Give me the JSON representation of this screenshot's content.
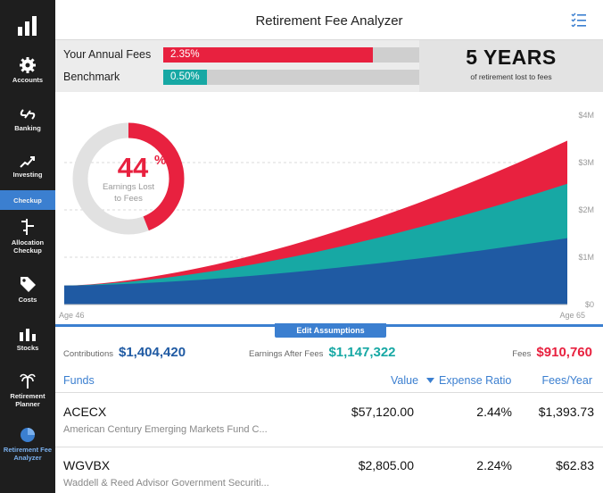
{
  "sidebar": {
    "items": [
      {
        "label": "",
        "icon": "bar-chart-icon"
      },
      {
        "label": "Accounts",
        "icon": "gear-icon"
      },
      {
        "label": "Banking",
        "icon": "link-icon"
      },
      {
        "label": "Investing",
        "icon": "trend-chart-icon"
      },
      {
        "label": "Checkup",
        "icon": ""
      },
      {
        "label": "Allocation Checkup",
        "icon": "allocation-icon"
      },
      {
        "label": "Costs",
        "icon": "tag-icon"
      },
      {
        "label": "Stocks",
        "icon": "stocks-icon"
      },
      {
        "label": "Retirement Planner",
        "icon": "palm-tree-icon"
      },
      {
        "label": "Retirement Fee Analyzer",
        "icon": "pie-icon"
      }
    ],
    "active": "Checkup"
  },
  "header": {
    "title": "Retirement Fee Analyzer",
    "menu_icon": "checklist-icon"
  },
  "fees": {
    "annual_label": "Your Annual Fees",
    "annual_value": "2.35%",
    "annual_fraction": 0.82,
    "benchmark_label": "Benchmark",
    "benchmark_value": "0.50%",
    "benchmark_fraction": 0.17,
    "years_big": "5 YEARS",
    "years_small": "of retirement lost to fees"
  },
  "colors": {
    "red": "#e8213f",
    "teal": "#17a8a4",
    "blue": "#1f5aa3",
    "accent": "#3b7fd0"
  },
  "donut": {
    "percent": "44",
    "percent_sign": "%",
    "label_line1": "Earnings Lost",
    "label_line2": "to Fees",
    "fraction": 0.44
  },
  "chart_data": {
    "type": "area",
    "x_start_label": "Age 46",
    "x_end_label": "Age 65",
    "y_ticks": [
      "$0",
      "$1M",
      "$2M",
      "$3M",
      "$4M"
    ],
    "ylim": [
      0,
      4
    ],
    "series": [
      {
        "name": "Contributions",
        "start": 0.4,
        "end": 1.40442
      },
      {
        "name": "Earnings After Fees",
        "start": 0.4,
        "end": 2.551742
      },
      {
        "name": "Fees",
        "start": 0.4,
        "end": 3.462502
      }
    ]
  },
  "edit_button": "Edit Assumptions",
  "totals": {
    "contributions_label": "Contributions",
    "contributions_value": "$1,404,420",
    "earnings_label": "Earnings After Fees",
    "earnings_value": "$1,147,322",
    "fees_label": "Fees",
    "fees_value": "$910,760"
  },
  "table": {
    "headers": {
      "funds": "Funds",
      "value": "Value",
      "expense_ratio": "Expense Ratio",
      "fees_year": "Fees/Year"
    },
    "rows": [
      {
        "ticker": "ACECX",
        "name": "American Century Emerging Markets Fund C...",
        "value": "$57,120.00",
        "expense_ratio": "2.44%",
        "fees_year": "$1,393.73"
      },
      {
        "ticker": "WGVBX",
        "name": "Waddell & Reed Advisor Government Securiti...",
        "value": "$2,805.00",
        "expense_ratio": "2.24%",
        "fees_year": "$62.83"
      }
    ]
  }
}
